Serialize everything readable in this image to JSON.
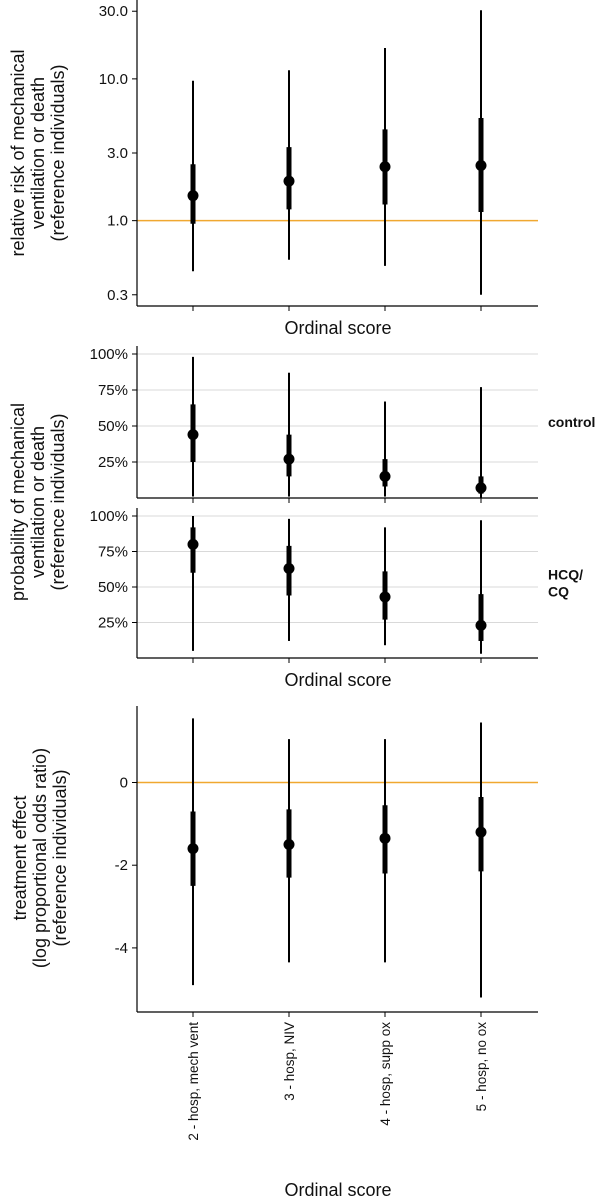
{
  "colors": {
    "reference_line": "#F0A830",
    "points": "#000000",
    "axis": "#000000",
    "grid": "#D9D9D9"
  },
  "chart_data": [
    {
      "type": "scatter",
      "subtype": "point-interval",
      "yscale": "log",
      "categories": [
        "2 - hosp, mech vent",
        "3 - hosp, NIV",
        "4 - hosp, supp ox",
        "5 - hosp, no ox"
      ],
      "xlabel": "Ordinal score",
      "ylabel": [
        "relative risk of mechanical",
        "ventilation or death",
        "(reference individuals)"
      ],
      "yticks": [
        0.3,
        1.0,
        3.0,
        10.0,
        30.0
      ],
      "ytick_labels": [
        "0.3",
        "1.0",
        "3.0",
        "10.0",
        "30.0"
      ],
      "ylim": [
        0.25,
        36
      ],
      "reference_line": 1.0,
      "grid": false,
      "points": [
        {
          "estimate": 1.5,
          "inner": [
            0.95,
            2.5
          ],
          "outer": [
            0.44,
            9.7
          ]
        },
        {
          "estimate": 1.9,
          "inner": [
            1.2,
            3.3
          ],
          "outer": [
            0.53,
            11.5
          ]
        },
        {
          "estimate": 2.4,
          "inner": [
            1.3,
            4.4
          ],
          "outer": [
            0.48,
            16.5
          ]
        },
        {
          "estimate": 2.45,
          "inner": [
            1.15,
            5.3
          ],
          "outer": [
            0.3,
            30.5
          ]
        }
      ]
    },
    {
      "type": "scatter",
      "subtype": "point-interval",
      "categories": [
        "2 - hosp, mech vent",
        "3 - hosp, NIV",
        "4 - hosp, supp ox",
        "5 - hosp, no ox"
      ],
      "xlabel": "Ordinal score",
      "ylabel": [
        "probability of mechanical",
        "ventilation or death",
        "(reference individuals)"
      ],
      "yticks": [
        0.25,
        0.5,
        0.75,
        1.0
      ],
      "ytick_labels": [
        "25%",
        "50%",
        "75%",
        "100%"
      ],
      "ylim": [
        0.0,
        1.0
      ],
      "grid": true,
      "facets": [
        {
          "label": [
            "control"
          ],
          "points": [
            {
              "estimate": 0.44,
              "inner": [
                0.25,
                0.65
              ],
              "outer": [
                0.01,
                0.98
              ]
            },
            {
              "estimate": 0.27,
              "inner": [
                0.15,
                0.44
              ],
              "outer": [
                0.01,
                0.87
              ]
            },
            {
              "estimate": 0.15,
              "inner": [
                0.08,
                0.27
              ],
              "outer": [
                0.01,
                0.67
              ]
            },
            {
              "estimate": 0.07,
              "inner": [
                0.03,
                0.15
              ],
              "outer": [
                0.0,
                0.77
              ]
            }
          ]
        },
        {
          "label": [
            "HCQ/",
            "CQ"
          ],
          "points": [
            {
              "estimate": 0.8,
              "inner": [
                0.6,
                0.92
              ],
              "outer": [
                0.05,
                1.0
              ]
            },
            {
              "estimate": 0.63,
              "inner": [
                0.44,
                0.79
              ],
              "outer": [
                0.12,
                0.98
              ]
            },
            {
              "estimate": 0.43,
              "inner": [
                0.27,
                0.61
              ],
              "outer": [
                0.09,
                0.92
              ]
            },
            {
              "estimate": 0.23,
              "inner": [
                0.12,
                0.45
              ],
              "outer": [
                0.03,
                0.97
              ]
            }
          ]
        }
      ]
    },
    {
      "type": "scatter",
      "subtype": "point-interval",
      "categories": [
        "2 - hosp, mech vent",
        "3 - hosp, NIV",
        "4 - hosp, supp ox",
        "5 - hosp, no ox"
      ],
      "xlabel": "Ordinal score",
      "ylabel": [
        "treatment effect",
        "(log proportional odds ratio)",
        "(reference individuals)"
      ],
      "yticks": [
        -4,
        -2,
        0
      ],
      "ytick_labels": [
        "-4",
        "-2",
        "0"
      ],
      "ylim": [
        -5.55,
        1.85
      ],
      "reference_line": 0,
      "grid": false,
      "points": [
        {
          "estimate": -1.6,
          "inner": [
            -2.5,
            -0.7
          ],
          "outer": [
            -4.9,
            1.55
          ]
        },
        {
          "estimate": -1.5,
          "inner": [
            -2.3,
            -0.65
          ],
          "outer": [
            -4.35,
            1.05
          ]
        },
        {
          "estimate": -1.35,
          "inner": [
            -2.2,
            -0.55
          ],
          "outer": [
            -4.35,
            1.05
          ]
        },
        {
          "estimate": -1.2,
          "inner": [
            -2.15,
            -0.35
          ],
          "outer": [
            -5.2,
            1.45
          ]
        }
      ]
    }
  ]
}
